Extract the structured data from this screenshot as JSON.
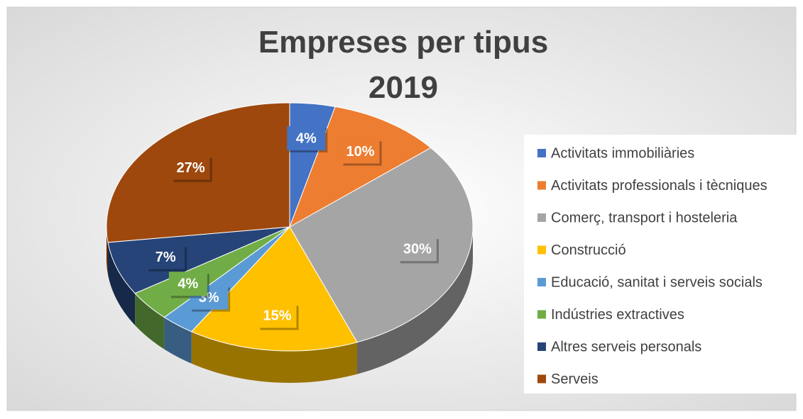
{
  "chart_data": {
    "type": "pie",
    "title": "Empreses per tipus 2019",
    "categories": [
      "Activitats immobiliàries",
      "Activitats professionals i tècniques",
      "Comerç, transport i hosteleria",
      "Construcció",
      "Educació, sanitat i serveis socials",
      "Indústries extractives",
      "Altres serveis personals",
      "Serveis"
    ],
    "values": [
      4,
      10,
      30,
      15,
      3,
      4,
      7,
      27
    ],
    "value_labels": [
      "4%",
      "10%",
      "30%",
      "15%",
      "3%",
      "4%",
      "7%",
      "27%"
    ],
    "colors": [
      "#4472c4",
      "#ed7d31",
      "#a5a5a5",
      "#ffc000",
      "#5b9bd5",
      "#70ad47",
      "#264478",
      "#9e480e"
    ],
    "legend": "right"
  }
}
